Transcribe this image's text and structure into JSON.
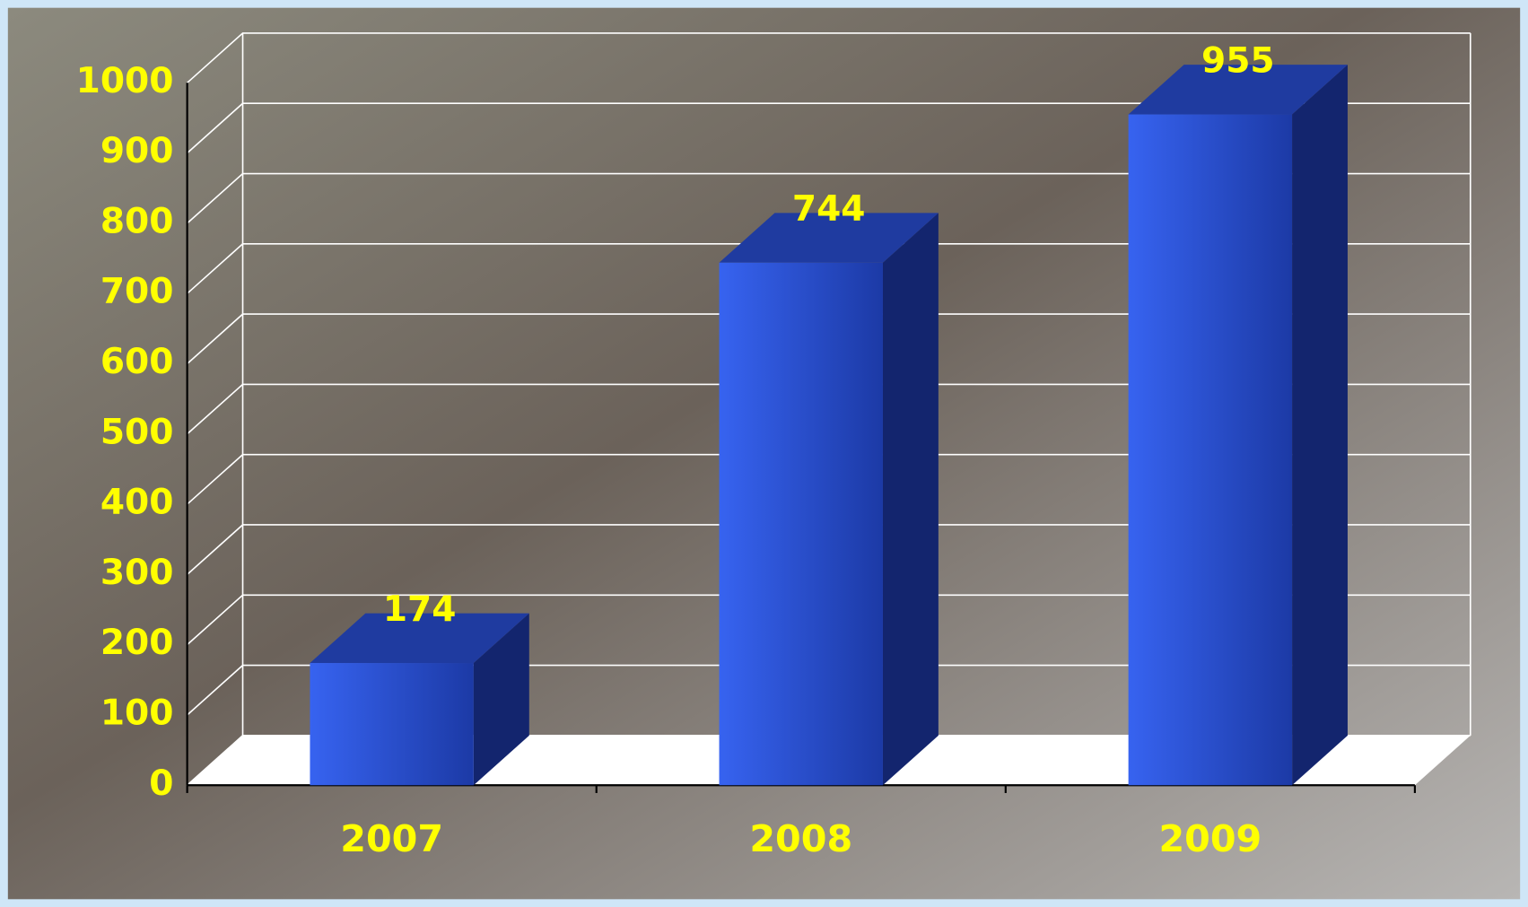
{
  "chart_data": {
    "type": "bar3d",
    "categories": [
      "2007",
      "2008",
      "2009"
    ],
    "values": [
      174,
      744,
      955
    ],
    "color": "#2a55e0",
    "ylim": [
      0,
      1000
    ],
    "yticks": [
      0,
      100,
      200,
      300,
      400,
      500,
      600,
      700,
      800,
      900,
      1000
    ],
    "grid": true
  }
}
